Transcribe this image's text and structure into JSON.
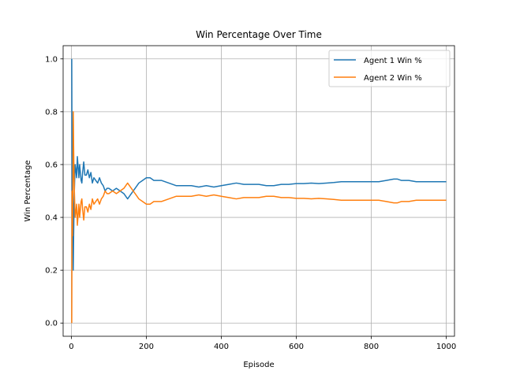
{
  "chart_data": {
    "type": "line",
    "title": "Win Percentage Over Time",
    "xlabel": "Episode",
    "ylabel": "Win Percentage",
    "xlim": [
      -22,
      1022
    ],
    "ylim": [
      -0.05,
      1.05
    ],
    "xticks": [
      0,
      200,
      400,
      600,
      800,
      1000
    ],
    "yticks": [
      0.0,
      0.2,
      0.4,
      0.6,
      0.8,
      1.0
    ],
    "xtick_labels": [
      "0",
      "200",
      "400",
      "600",
      "800",
      "1000"
    ],
    "ytick_labels": [
      "0.0",
      "0.2",
      "0.4",
      "0.6",
      "0.8",
      "1.0"
    ],
    "grid": true,
    "legend_position": "top-right",
    "series": [
      {
        "name": "Agent 1 Win %",
        "color": "#1f77b4",
        "x": [
          1,
          2,
          3,
          4,
          5,
          6,
          7,
          8,
          10,
          12,
          14,
          16,
          18,
          20,
          22,
          24,
          26,
          28,
          30,
          33,
          36,
          40,
          44,
          48,
          52,
          56,
          60,
          65,
          70,
          75,
          80,
          85,
          90,
          95,
          100,
          110,
          120,
          130,
          140,
          150,
          160,
          170,
          180,
          190,
          200,
          210,
          220,
          240,
          260,
          280,
          300,
          320,
          340,
          360,
          380,
          400,
          420,
          440,
          460,
          480,
          500,
          520,
          540,
          560,
          580,
          600,
          620,
          640,
          660,
          680,
          700,
          720,
          740,
          760,
          780,
          800,
          820,
          840,
          860,
          870,
          880,
          900,
          920,
          940,
          960,
          980,
          1000
        ],
        "y": [
          1.0,
          0.5,
          0.67,
          0.5,
          0.2,
          0.33,
          0.43,
          0.5,
          0.6,
          0.58,
          0.55,
          0.63,
          0.59,
          0.55,
          0.6,
          0.57,
          0.54,
          0.53,
          0.57,
          0.61,
          0.56,
          0.56,
          0.58,
          0.55,
          0.57,
          0.53,
          0.55,
          0.54,
          0.53,
          0.55,
          0.53,
          0.52,
          0.5,
          0.51,
          0.51,
          0.5,
          0.51,
          0.5,
          0.49,
          0.47,
          0.49,
          0.51,
          0.53,
          0.54,
          0.55,
          0.55,
          0.54,
          0.54,
          0.53,
          0.52,
          0.52,
          0.52,
          0.515,
          0.52,
          0.515,
          0.52,
          0.525,
          0.53,
          0.525,
          0.525,
          0.525,
          0.52,
          0.52,
          0.525,
          0.525,
          0.528,
          0.528,
          0.53,
          0.528,
          0.53,
          0.532,
          0.535,
          0.535,
          0.535,
          0.535,
          0.535,
          0.535,
          0.54,
          0.545,
          0.545,
          0.54,
          0.54,
          0.535,
          0.535,
          0.535,
          0.535,
          0.535
        ]
      },
      {
        "name": "Agent 2 Win %",
        "color": "#ff7f0e",
        "x": [
          1,
          2,
          3,
          4,
          5,
          6,
          7,
          8,
          10,
          12,
          14,
          16,
          18,
          20,
          22,
          24,
          26,
          28,
          30,
          33,
          36,
          40,
          44,
          48,
          52,
          56,
          60,
          65,
          70,
          75,
          80,
          85,
          90,
          95,
          100,
          110,
          120,
          130,
          140,
          150,
          160,
          170,
          180,
          190,
          200,
          210,
          220,
          240,
          260,
          280,
          300,
          320,
          340,
          360,
          380,
          400,
          420,
          440,
          460,
          480,
          500,
          520,
          540,
          560,
          580,
          600,
          620,
          640,
          660,
          680,
          700,
          720,
          740,
          760,
          780,
          800,
          820,
          840,
          860,
          870,
          880,
          900,
          920,
          940,
          960,
          980,
          1000
        ],
        "y": [
          0.0,
          0.5,
          0.33,
          0.5,
          0.8,
          0.67,
          0.57,
          0.5,
          0.4,
          0.42,
          0.45,
          0.37,
          0.41,
          0.45,
          0.4,
          0.43,
          0.46,
          0.47,
          0.43,
          0.39,
          0.44,
          0.44,
          0.42,
          0.45,
          0.43,
          0.47,
          0.45,
          0.46,
          0.47,
          0.45,
          0.47,
          0.48,
          0.5,
          0.49,
          0.49,
          0.5,
          0.49,
          0.5,
          0.51,
          0.53,
          0.51,
          0.49,
          0.47,
          0.46,
          0.45,
          0.45,
          0.46,
          0.46,
          0.47,
          0.48,
          0.48,
          0.48,
          0.485,
          0.48,
          0.485,
          0.48,
          0.475,
          0.47,
          0.475,
          0.475,
          0.475,
          0.48,
          0.48,
          0.475,
          0.475,
          0.472,
          0.472,
          0.47,
          0.472,
          0.47,
          0.468,
          0.465,
          0.465,
          0.465,
          0.465,
          0.465,
          0.465,
          0.46,
          0.455,
          0.455,
          0.46,
          0.46,
          0.465,
          0.465,
          0.465,
          0.465,
          0.465
        ]
      }
    ]
  }
}
